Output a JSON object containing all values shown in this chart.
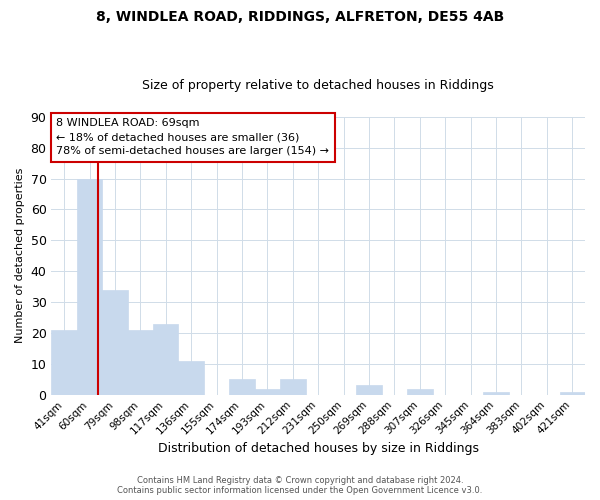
{
  "title": "8, WINDLEA ROAD, RIDDINGS, ALFRETON, DE55 4AB",
  "subtitle": "Size of property relative to detached houses in Riddings",
  "xlabel": "Distribution of detached houses by size in Riddings",
  "ylabel": "Number of detached properties",
  "bar_labels": [
    "41sqm",
    "60sqm",
    "79sqm",
    "98sqm",
    "117sqm",
    "136sqm",
    "155sqm",
    "174sqm",
    "193sqm",
    "212sqm",
    "231sqm",
    "250sqm",
    "269sqm",
    "288sqm",
    "307sqm",
    "326sqm",
    "345sqm",
    "364sqm",
    "383sqm",
    "402sqm",
    "421sqm"
  ],
  "bar_values": [
    21,
    70,
    34,
    21,
    23,
    11,
    0,
    5,
    2,
    5,
    0,
    0,
    3,
    0,
    2,
    0,
    0,
    1,
    0,
    0,
    1
  ],
  "bar_color": "#c8d9ed",
  "bar_edge_color": "#c8d9ed",
  "grid_color": "#d0dce8",
  "background_color": "#ffffff",
  "ylim": [
    0,
    90
  ],
  "yticks": [
    0,
    10,
    20,
    30,
    40,
    50,
    60,
    70,
    80,
    90
  ],
  "property_line_color": "#cc0000",
  "annotation_title": "8 WINDLEA ROAD: 69sqm",
  "annotation_line1": "← 18% of detached houses are smaller (36)",
  "annotation_line2": "78% of semi-detached houses are larger (154) →",
  "annotation_box_color": "#ffffff",
  "annotation_box_edge": "#cc0000",
  "footer1": "Contains HM Land Registry data © Crown copyright and database right 2024.",
  "footer2": "Contains public sector information licensed under the Open Government Licence v3.0."
}
